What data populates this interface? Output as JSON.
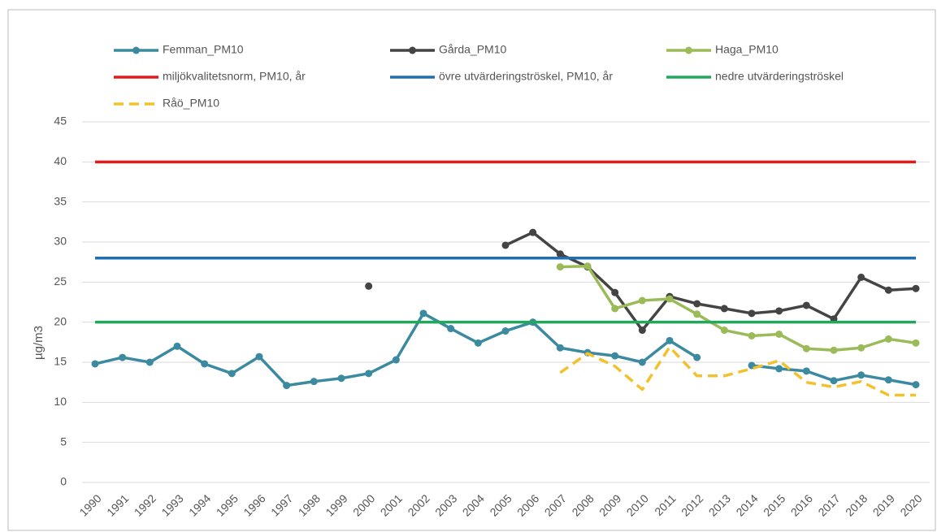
{
  "chart_data": {
    "type": "line",
    "ylabel": "µg/m3",
    "categories": [
      "1990",
      "1991",
      "1992",
      "1993",
      "1994",
      "1995",
      "1996",
      "1997",
      "1998",
      "1999",
      "2000",
      "2001",
      "2002",
      "2003",
      "2004",
      "2005",
      "2006",
      "2007",
      "2008",
      "2009",
      "2010",
      "2011",
      "2012",
      "2013",
      "2014",
      "2015",
      "2016",
      "2017",
      "2018",
      "2019",
      "2020"
    ],
    "ylim": [
      0,
      45
    ],
    "yticks": [
      0,
      5,
      10,
      15,
      20,
      25,
      30,
      35,
      40,
      45
    ],
    "grid": true,
    "series": [
      {
        "name": "Femman_PM10",
        "color": "#3b8aa0",
        "marker": true,
        "dashed": false,
        "values": [
          14.8,
          15.6,
          15.0,
          17.0,
          14.8,
          13.6,
          15.7,
          12.1,
          12.6,
          13.0,
          13.6,
          15.3,
          21.1,
          19.2,
          17.4,
          18.9,
          20.0,
          16.8,
          16.2,
          15.8,
          15.0,
          17.7,
          15.6,
          null,
          14.6,
          14.2,
          13.9,
          12.7,
          13.4,
          12.8,
          12.2
        ]
      },
      {
        "name": "Gårda_PM10",
        "color": "#444444",
        "marker": true,
        "dashed": false,
        "values": [
          null,
          null,
          null,
          null,
          null,
          null,
          null,
          null,
          null,
          null,
          24.5,
          null,
          null,
          null,
          null,
          29.6,
          31.2,
          28.5,
          26.9,
          23.7,
          19.0,
          23.2,
          22.3,
          21.7,
          21.1,
          21.4,
          22.1,
          20.4,
          25.6,
          24.0,
          24.2
        ]
      },
      {
        "name": "Haga_PM10",
        "color": "#9bbb59",
        "marker": true,
        "dashed": false,
        "values": [
          null,
          null,
          null,
          null,
          null,
          null,
          null,
          null,
          null,
          null,
          null,
          null,
          null,
          null,
          null,
          null,
          null,
          26.9,
          27.0,
          21.7,
          22.7,
          22.9,
          21.0,
          19.0,
          18.3,
          18.5,
          16.7,
          16.5,
          16.8,
          17.9,
          17.4
        ]
      },
      {
        "name": "miljökvalitetsnorm, PM10, år",
        "color": "#e41a1c",
        "marker": false,
        "dashed": false,
        "values": [
          40,
          40,
          40,
          40,
          40,
          40,
          40,
          40,
          40,
          40,
          40,
          40,
          40,
          40,
          40,
          40,
          40,
          40,
          40,
          40,
          40,
          40,
          40,
          40,
          40,
          40,
          40,
          40,
          40,
          40,
          40
        ]
      },
      {
        "name": "övre utvärderingströskel, PM10, år",
        "color": "#1f6fb4",
        "marker": false,
        "dashed": false,
        "values": [
          28,
          28,
          28,
          28,
          28,
          28,
          28,
          28,
          28,
          28,
          28,
          28,
          28,
          28,
          28,
          28,
          28,
          28,
          28,
          28,
          28,
          28,
          28,
          28,
          28,
          28,
          28,
          28,
          28,
          28,
          28
        ]
      },
      {
        "name": "nedre utvärderingströskel",
        "color": "#22a85a",
        "marker": false,
        "dashed": false,
        "values": [
          20,
          20,
          20,
          20,
          20,
          20,
          20,
          20,
          20,
          20,
          20,
          20,
          20,
          20,
          20,
          20,
          20,
          20,
          20,
          20,
          20,
          20,
          20,
          20,
          20,
          20,
          20,
          20,
          20,
          20,
          20
        ]
      },
      {
        "name": "Råö_PM10",
        "color": "#f2c12e",
        "marker": false,
        "dashed": true,
        "values": [
          null,
          null,
          null,
          null,
          null,
          null,
          null,
          null,
          null,
          null,
          null,
          null,
          null,
          null,
          null,
          null,
          null,
          13.7,
          16.1,
          14.5,
          11.6,
          16.9,
          13.3,
          13.3,
          14.2,
          15.2,
          12.5,
          11.9,
          12.6,
          10.9,
          10.9
        ]
      }
    ]
  }
}
